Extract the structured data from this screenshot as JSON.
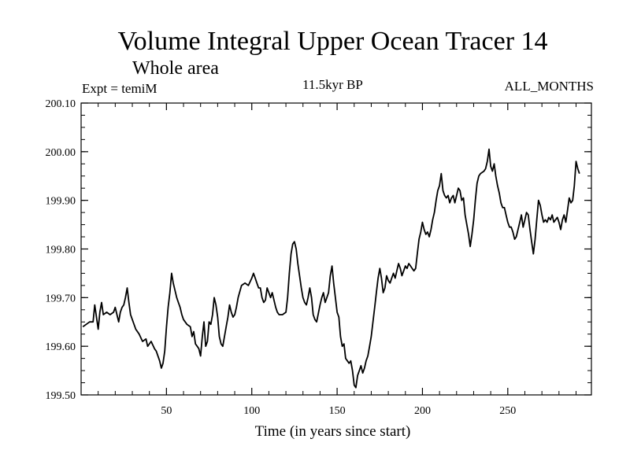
{
  "chart_data": {
    "type": "line",
    "title": "Volume Integral Upper Ocean Tracer 14",
    "subtitle": "Whole area",
    "experiment": "Expt = temiM",
    "period": "11.5kyr BP",
    "months": "ALL_MONTHS",
    "xlabel": "Time (in years since start)",
    "ylabel": "",
    "xlim": [
      0,
      299
    ],
    "ylim": [
      199.5,
      200.1
    ],
    "xticks": [
      50,
      100,
      150,
      200,
      250
    ],
    "yticks": [
      199.5,
      199.6,
      199.7,
      199.8,
      199.9,
      200.0,
      200.1
    ],
    "ytick_labels": [
      "199.50",
      "199.60",
      "199.70",
      "199.80",
      "199.90",
      "200.00",
      "200.10"
    ],
    "series": [
      {
        "name": "Tracer 14",
        "points": [
          [
            1,
            199.64
          ],
          [
            3,
            199.645
          ],
          [
            5,
            199.65
          ],
          [
            7,
            199.65
          ],
          [
            8,
            199.685
          ],
          [
            9,
            199.66
          ],
          [
            10,
            199.635
          ],
          [
            11,
            199.67
          ],
          [
            12,
            199.69
          ],
          [
            13,
            199.665
          ],
          [
            15,
            199.67
          ],
          [
            17,
            199.665
          ],
          [
            19,
            199.67
          ],
          [
            20,
            199.68
          ],
          [
            21,
            199.665
          ],
          [
            22,
            199.65
          ],
          [
            23,
            199.67
          ],
          [
            24,
            199.68
          ],
          [
            25,
            199.685
          ],
          [
            26,
            199.7
          ],
          [
            27,
            199.72
          ],
          [
            28,
            199.69
          ],
          [
            29,
            199.665
          ],
          [
            30,
            199.655
          ],
          [
            32,
            199.635
          ],
          [
            34,
            199.625
          ],
          [
            36,
            199.61
          ],
          [
            38,
            199.615
          ],
          [
            39,
            199.6
          ],
          [
            40,
            199.605
          ],
          [
            41,
            199.61
          ],
          [
            43,
            199.595
          ],
          [
            44,
            199.59
          ],
          [
            46,
            199.57
          ],
          [
            47,
            199.555
          ],
          [
            48,
            199.565
          ],
          [
            49,
            199.59
          ],
          [
            50,
            199.64
          ],
          [
            51,
            199.68
          ],
          [
            52,
            199.71
          ],
          [
            53,
            199.75
          ],
          [
            54,
            199.73
          ],
          [
            55,
            199.715
          ],
          [
            56,
            199.7
          ],
          [
            57,
            199.69
          ],
          [
            58,
            199.68
          ],
          [
            59,
            199.665
          ],
          [
            60,
            199.655
          ],
          [
            62,
            199.645
          ],
          [
            64,
            199.64
          ],
          [
            65,
            199.62
          ],
          [
            66,
            199.63
          ],
          [
            67,
            199.605
          ],
          [
            68,
            199.6
          ],
          [
            69,
            199.595
          ],
          [
            70,
            199.58
          ],
          [
            71,
            199.62
          ],
          [
            72,
            199.65
          ],
          [
            73,
            199.6
          ],
          [
            74,
            199.61
          ],
          [
            75,
            199.65
          ],
          [
            76,
            199.645
          ],
          [
            77,
            199.665
          ],
          [
            78,
            199.7
          ],
          [
            79,
            199.685
          ],
          [
            80,
            199.66
          ],
          [
            81,
            199.62
          ],
          [
            82,
            199.605
          ],
          [
            83,
            199.6
          ],
          [
            85,
            199.64
          ],
          [
            86,
            199.66
          ],
          [
            87,
            199.685
          ],
          [
            88,
            199.67
          ],
          [
            89,
            199.66
          ],
          [
            90,
            199.665
          ],
          [
            91,
            199.68
          ],
          [
            92,
            199.7
          ],
          [
            94,
            199.725
          ],
          [
            96,
            199.73
          ],
          [
            98,
            199.725
          ],
          [
            100,
            199.74
          ],
          [
            101,
            199.75
          ],
          [
            102,
            199.74
          ],
          [
            103,
            199.73
          ],
          [
            104,
            199.72
          ],
          [
            105,
            199.72
          ],
          [
            106,
            199.7
          ],
          [
            107,
            199.69
          ],
          [
            108,
            199.695
          ],
          [
            109,
            199.72
          ],
          [
            110,
            199.71
          ],
          [
            111,
            199.7
          ],
          [
            112,
            199.71
          ],
          [
            113,
            199.695
          ],
          [
            114,
            199.68
          ],
          [
            115,
            199.67
          ],
          [
            116,
            199.665
          ],
          [
            118,
            199.665
          ],
          [
            120,
            199.67
          ],
          [
            121,
            199.7
          ],
          [
            122,
            199.75
          ],
          [
            123,
            199.79
          ],
          [
            124,
            199.81
          ],
          [
            125,
            199.815
          ],
          [
            126,
            199.8
          ],
          [
            127,
            199.77
          ],
          [
            128,
            199.745
          ],
          [
            129,
            199.72
          ],
          [
            130,
            199.7
          ],
          [
            131,
            199.69
          ],
          [
            132,
            199.685
          ],
          [
            133,
            199.7
          ],
          [
            134,
            199.72
          ],
          [
            135,
            199.7
          ],
          [
            136,
            199.665
          ],
          [
            137,
            199.655
          ],
          [
            138,
            199.65
          ],
          [
            140,
            199.685
          ],
          [
            141,
            199.7
          ],
          [
            142,
            199.71
          ],
          [
            143,
            199.69
          ],
          [
            145,
            199.71
          ],
          [
            146,
            199.745
          ],
          [
            147,
            199.765
          ],
          [
            148,
            199.73
          ],
          [
            149,
            199.7
          ],
          [
            150,
            199.67
          ],
          [
            151,
            199.66
          ],
          [
            152,
            199.62
          ],
          [
            153,
            199.6
          ],
          [
            154,
            199.605
          ],
          [
            155,
            199.575
          ],
          [
            156,
            199.57
          ],
          [
            157,
            199.565
          ],
          [
            158,
            199.57
          ],
          [
            159,
            199.55
          ],
          [
            160,
            199.52
          ],
          [
            161,
            199.515
          ],
          [
            162,
            199.54
          ],
          [
            163,
            199.55
          ],
          [
            164,
            199.56
          ],
          [
            165,
            199.545
          ],
          [
            166,
            199.555
          ],
          [
            167,
            199.57
          ],
          [
            168,
            199.58
          ],
          [
            169,
            199.6
          ],
          [
            170,
            199.62
          ],
          [
            171,
            199.65
          ],
          [
            172,
            199.68
          ],
          [
            173,
            199.71
          ],
          [
            174,
            199.74
          ],
          [
            175,
            199.76
          ],
          [
            176,
            199.74
          ],
          [
            177,
            199.71
          ],
          [
            178,
            199.72
          ],
          [
            179,
            199.745
          ],
          [
            180,
            199.735
          ],
          [
            181,
            199.73
          ],
          [
            182,
            199.74
          ],
          [
            183,
            199.75
          ],
          [
            184,
            199.74
          ],
          [
            185,
            199.755
          ],
          [
            186,
            199.77
          ],
          [
            187,
            199.76
          ],
          [
            188,
            199.745
          ],
          [
            189,
            199.755
          ],
          [
            190,
            199.765
          ],
          [
            191,
            199.76
          ],
          [
            192,
            199.77
          ],
          [
            193,
            199.765
          ],
          [
            194,
            199.76
          ],
          [
            195,
            199.755
          ],
          [
            196,
            199.76
          ],
          [
            197,
            199.79
          ],
          [
            198,
            199.82
          ],
          [
            199,
            199.835
          ],
          [
            200,
            199.855
          ],
          [
            201,
            199.84
          ],
          [
            202,
            199.83
          ],
          [
            203,
            199.835
          ],
          [
            204,
            199.825
          ],
          [
            205,
            199.84
          ],
          [
            206,
            199.86
          ],
          [
            207,
            199.875
          ],
          [
            208,
            199.9
          ],
          [
            209,
            199.92
          ],
          [
            210,
            199.93
          ],
          [
            211,
            199.955
          ],
          [
            212,
            199.92
          ],
          [
            213,
            199.91
          ],
          [
            214,
            199.905
          ],
          [
            215,
            199.91
          ],
          [
            216,
            199.895
          ],
          [
            217,
            199.905
          ],
          [
            218,
            199.91
          ],
          [
            219,
            199.895
          ],
          [
            220,
            199.91
          ],
          [
            221,
            199.925
          ],
          [
            222,
            199.92
          ],
          [
            223,
            199.9
          ],
          [
            224,
            199.905
          ],
          [
            225,
            199.87
          ],
          [
            226,
            199.85
          ],
          [
            227,
            199.83
          ],
          [
            228,
            199.805
          ],
          [
            229,
            199.83
          ],
          [
            230,
            199.86
          ],
          [
            231,
            199.9
          ],
          [
            232,
            199.935
          ],
          [
            233,
            199.95
          ],
          [
            234,
            199.955
          ],
          [
            236,
            199.96
          ],
          [
            237,
            199.965
          ],
          [
            238,
            199.98
          ],
          [
            239,
            200.005
          ],
          [
            240,
            199.97
          ],
          [
            241,
            199.96
          ],
          [
            242,
            199.975
          ],
          [
            243,
            199.95
          ],
          [
            244,
            199.93
          ],
          [
            245,
            199.915
          ],
          [
            246,
            199.895
          ],
          [
            247,
            199.885
          ],
          [
            248,
            199.885
          ],
          [
            249,
            199.87
          ],
          [
            250,
            199.855
          ],
          [
            251,
            199.845
          ],
          [
            252,
            199.845
          ],
          [
            253,
            199.835
          ],
          [
            254,
            199.82
          ],
          [
            255,
            199.825
          ],
          [
            256,
            199.84
          ],
          [
            257,
            199.855
          ],
          [
            258,
            199.87
          ],
          [
            259,
            199.845
          ],
          [
            260,
            199.86
          ],
          [
            261,
            199.875
          ],
          [
            262,
            199.87
          ],
          [
            263,
            199.84
          ],
          [
            264,
            199.815
          ],
          [
            265,
            199.79
          ],
          [
            266,
            199.82
          ],
          [
            267,
            199.86
          ],
          [
            268,
            199.9
          ],
          [
            269,
            199.89
          ],
          [
            270,
            199.87
          ],
          [
            271,
            199.855
          ],
          [
            272,
            199.86
          ],
          [
            273,
            199.855
          ],
          [
            274,
            199.865
          ],
          [
            275,
            199.86
          ],
          [
            276,
            199.87
          ],
          [
            277,
            199.855
          ],
          [
            278,
            199.86
          ],
          [
            279,
            199.865
          ],
          [
            280,
            199.855
          ],
          [
            281,
            199.84
          ],
          [
            282,
            199.86
          ],
          [
            283,
            199.87
          ],
          [
            284,
            199.855
          ],
          [
            285,
            199.88
          ],
          [
            286,
            199.905
          ],
          [
            287,
            199.895
          ],
          [
            288,
            199.9
          ],
          [
            289,
            199.93
          ],
          [
            290,
            199.98
          ],
          [
            291,
            199.965
          ],
          [
            292,
            199.955
          ]
        ]
      }
    ]
  }
}
